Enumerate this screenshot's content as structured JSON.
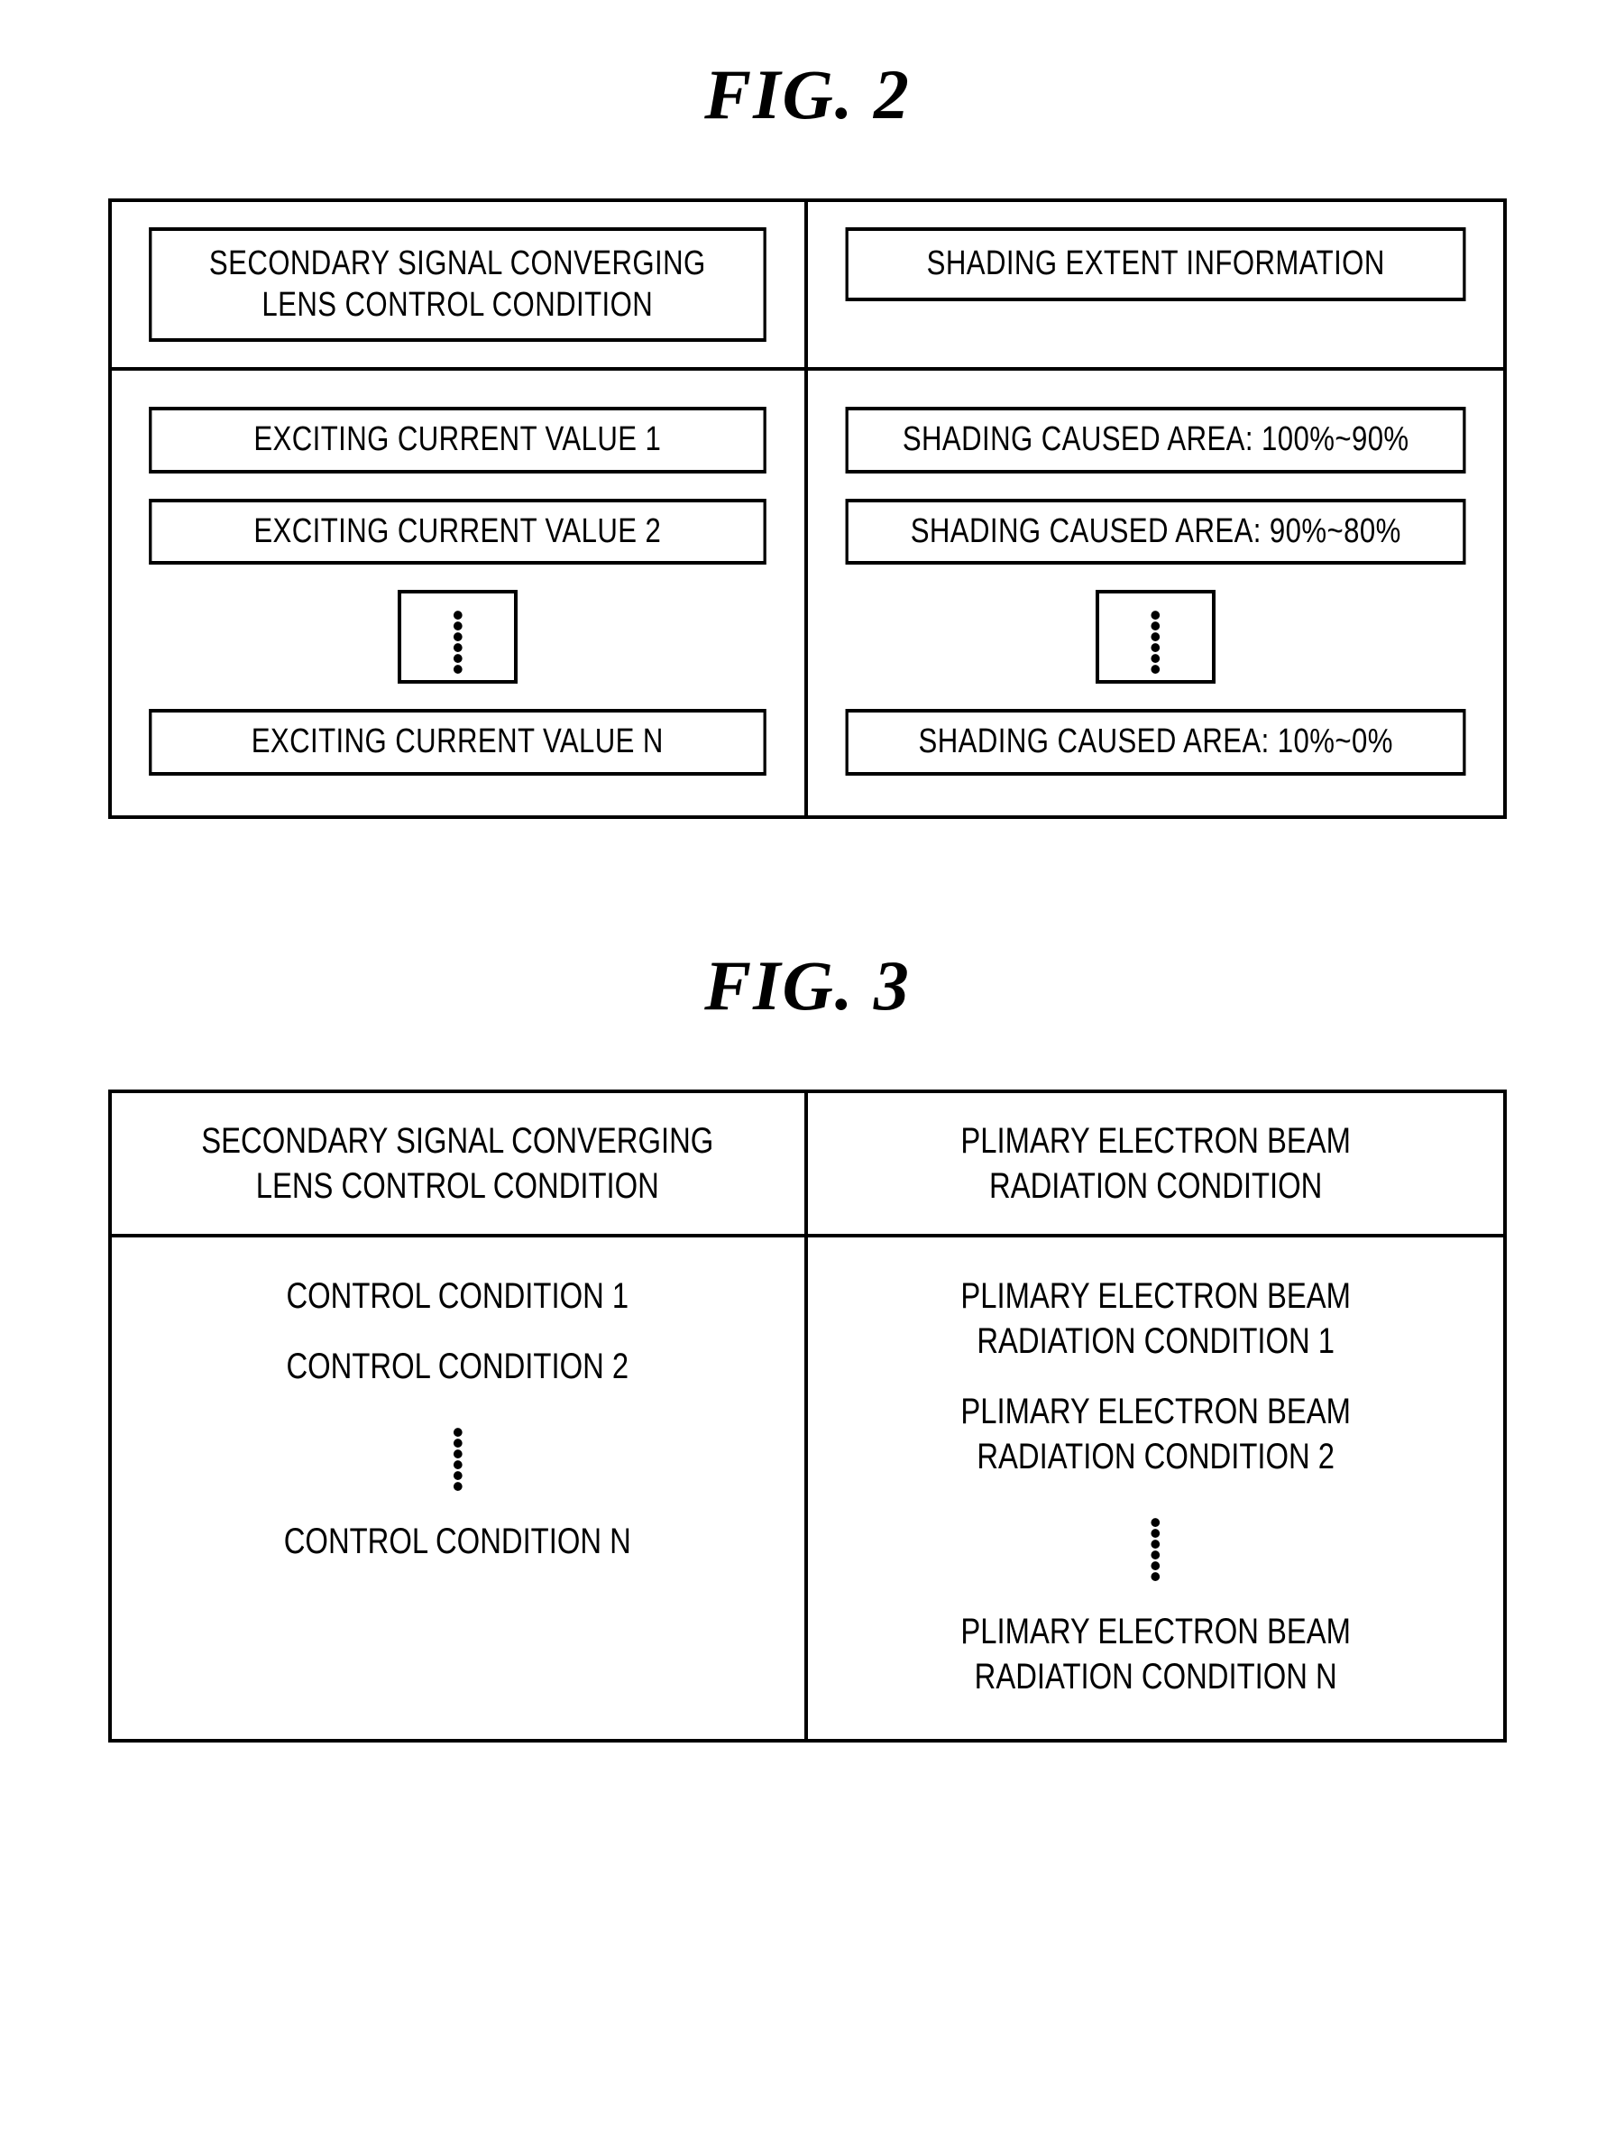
{
  "fig2": {
    "title": "FIG. 2",
    "header_left": "SECONDARY SIGNAL CONVERGING\nLENS CONTROL CONDITION",
    "header_right": "SHADING EXTENT INFORMATION",
    "left_items": {
      "item1": "EXCITING CURRENT VALUE 1",
      "item2": "EXCITING CURRENT VALUE 2",
      "itemN": "EXCITING CURRENT VALUE N"
    },
    "right_items": {
      "item1": "SHADING CAUSED AREA: 100%~90%",
      "item2": "SHADING CAUSED AREA: 90%~80%",
      "itemN": "SHADING CAUSED AREA: 10%~0%"
    }
  },
  "fig3": {
    "title": "FIG. 3",
    "header_left": "SECONDARY SIGNAL CONVERGING\nLENS CONTROL CONDITION",
    "header_right": "PLIMARY ELECTRON BEAM\nRADIATION CONDITION",
    "left_items": {
      "item1": "CONTROL CONDITION 1",
      "item2": "CONTROL CONDITION 2",
      "itemN": "CONTROL CONDITION N"
    },
    "right_items": {
      "item1": "PLIMARY ELECTRON BEAM\nRADIATION CONDITION 1",
      "item2": "PLIMARY ELECTRON BEAM\nRADIATION CONDITION 2",
      "itemN": "PLIMARY ELECTRON BEAM\nRADIATION CONDITION N"
    }
  },
  "style": {
    "border_color": "#000000",
    "bg_color": "#ffffff",
    "font_family": "Arial, Helvetica, sans-serif",
    "title_font_family": "Times New Roman, Times, serif"
  }
}
